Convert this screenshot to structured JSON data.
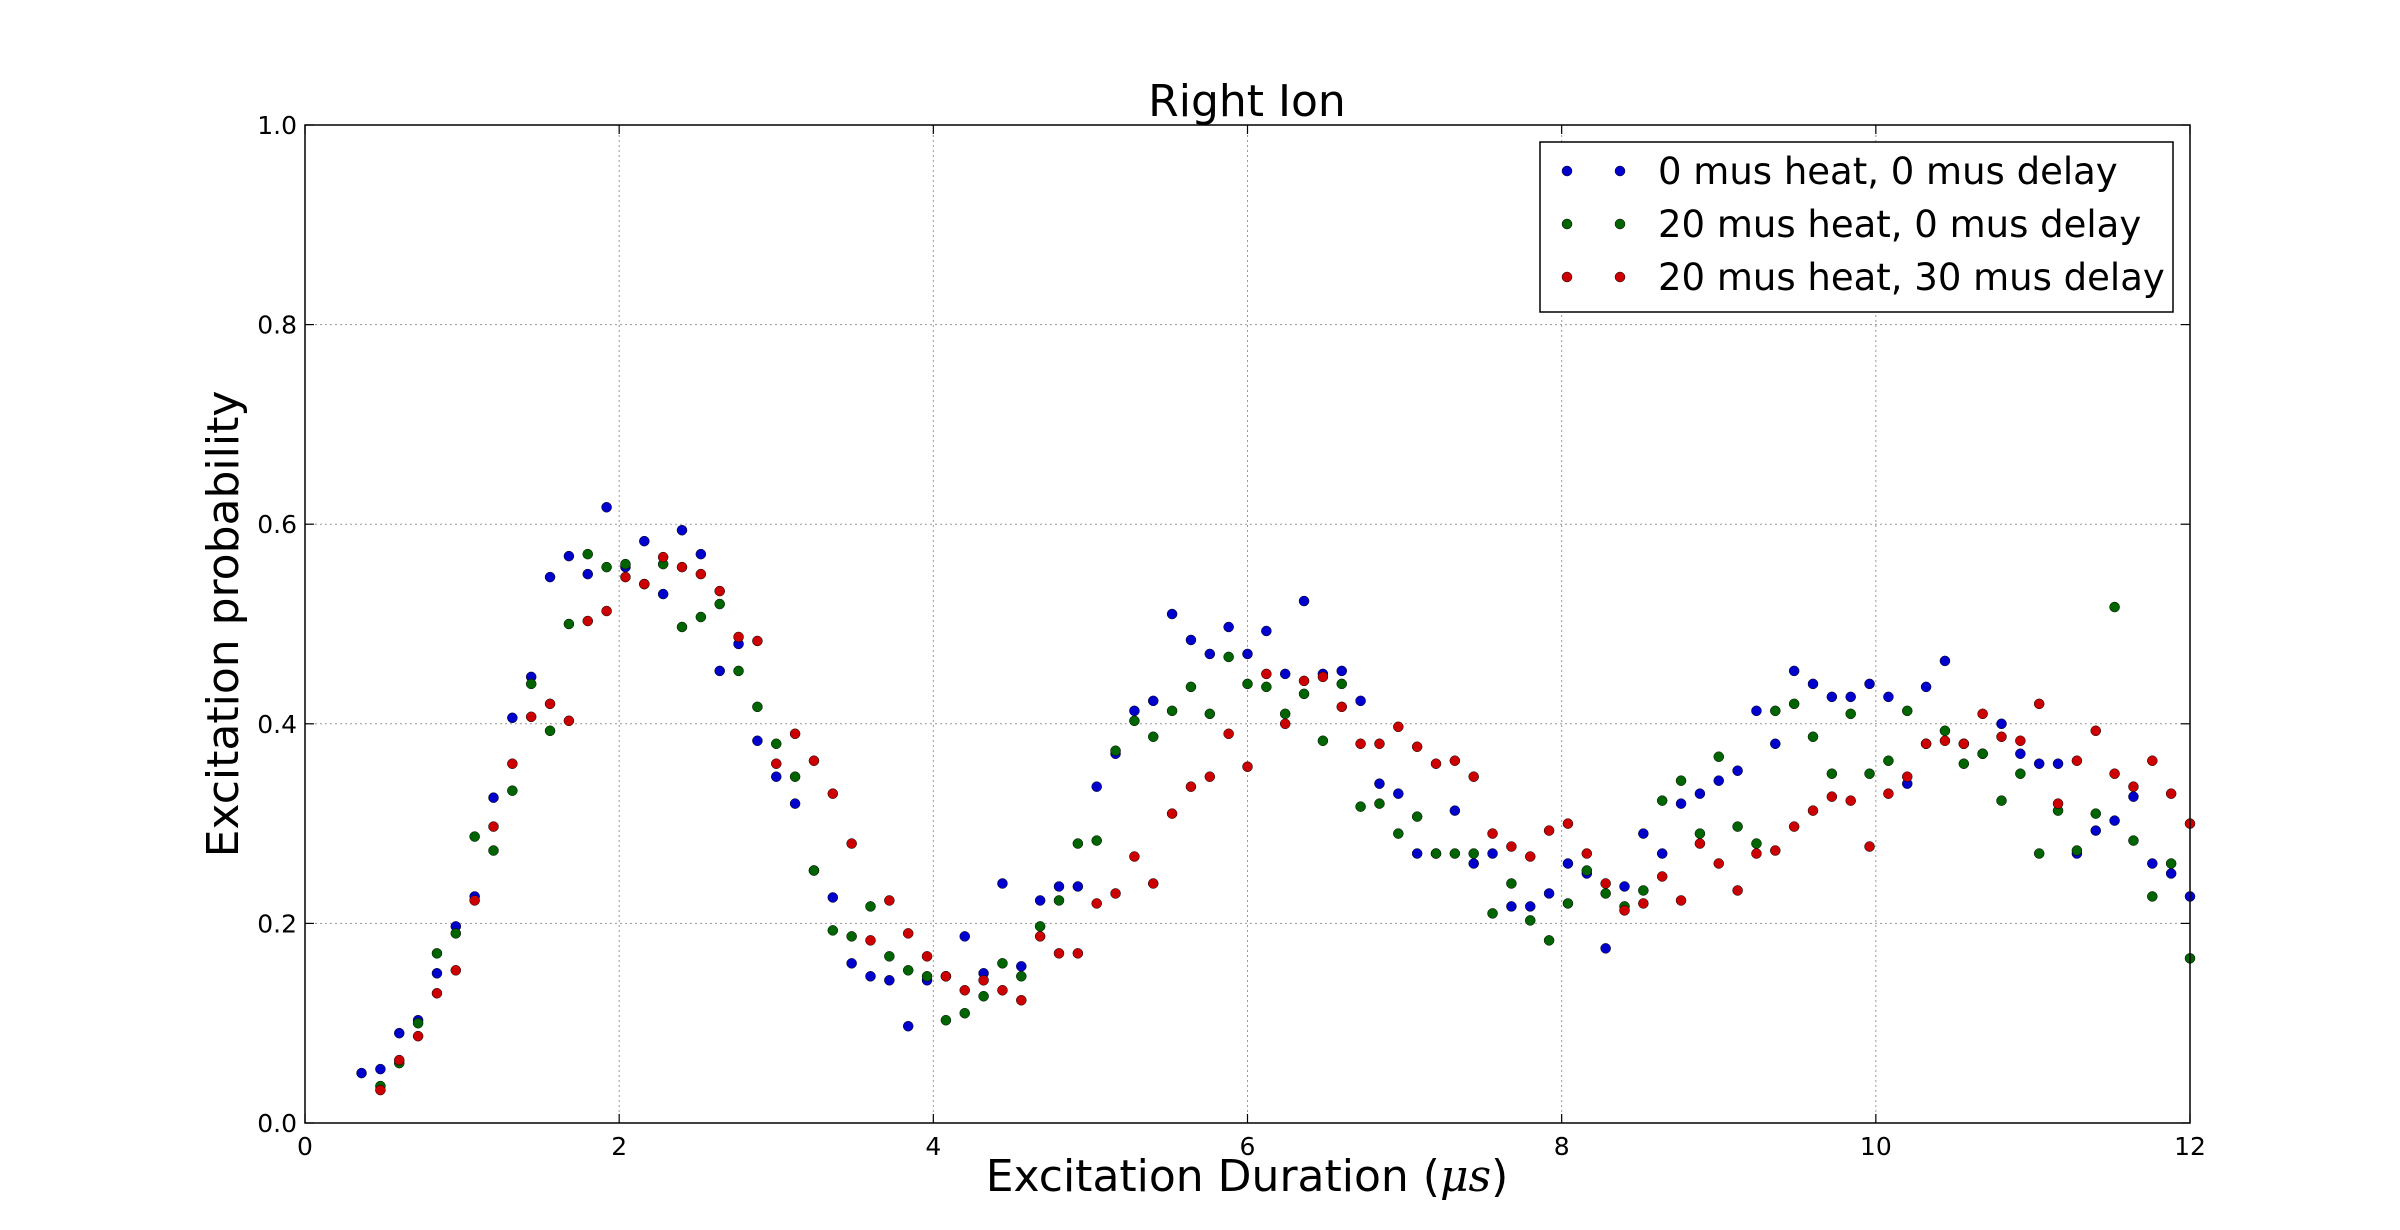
{
  "chart_data": {
    "type": "scatter",
    "title": "Right Ion",
    "xlabel_prefix": "Excitation Duration (",
    "xlabel_unit": "μs",
    "xlabel_suffix": ")",
    "ylabel": "Excitation probability",
    "xlim": [
      0,
      12
    ],
    "ylim": [
      0.0,
      1.0
    ],
    "xticks": [
      "0",
      "2",
      "4",
      "6",
      "8",
      "10",
      "12"
    ],
    "yticks": [
      "0.0",
      "0.2",
      "0.4",
      "0.6",
      "0.8",
      "1.0"
    ],
    "grid": true,
    "legend_position": "top-right",
    "series": [
      {
        "name": "0 mus heat, 0 mus delay",
        "color": "#0000cc",
        "points": [
          [
            0.36,
            0.05
          ],
          [
            0.48,
            0.054
          ],
          [
            0.6,
            0.09
          ],
          [
            0.72,
            0.103
          ],
          [
            0.84,
            0.15
          ],
          [
            0.96,
            0.197
          ],
          [
            1.08,
            0.227
          ],
          [
            1.2,
            0.326
          ],
          [
            1.32,
            0.406
          ],
          [
            1.44,
            0.447
          ],
          [
            1.56,
            0.547
          ],
          [
            1.68,
            0.568
          ],
          [
            1.8,
            0.55
          ],
          [
            1.92,
            0.617
          ],
          [
            2.04,
            0.557
          ],
          [
            2.16,
            0.583
          ],
          [
            2.28,
            0.53
          ],
          [
            2.4,
            0.594
          ],
          [
            2.52,
            0.57
          ],
          [
            2.64,
            0.453
          ],
          [
            2.76,
            0.48
          ],
          [
            2.88,
            0.383
          ],
          [
            3.0,
            0.347
          ],
          [
            3.12,
            0.32
          ],
          [
            3.24,
            0.253
          ],
          [
            3.36,
            0.226
          ],
          [
            3.48,
            0.16
          ],
          [
            3.6,
            0.147
          ],
          [
            3.72,
            0.143
          ],
          [
            3.84,
            0.097
          ],
          [
            3.96,
            0.143
          ],
          [
            4.08,
            0.147
          ],
          [
            4.2,
            0.187
          ],
          [
            4.32,
            0.15
          ],
          [
            4.44,
            0.24
          ],
          [
            4.56,
            0.157
          ],
          [
            4.68,
            0.223
          ],
          [
            4.8,
            0.237
          ],
          [
            4.92,
            0.237
          ],
          [
            5.04,
            0.337
          ],
          [
            5.16,
            0.37
          ],
          [
            5.28,
            0.413
          ],
          [
            5.4,
            0.423
          ],
          [
            5.52,
            0.51
          ],
          [
            5.64,
            0.484
          ],
          [
            5.76,
            0.47
          ],
          [
            5.88,
            0.497
          ],
          [
            6.0,
            0.47
          ],
          [
            6.12,
            0.493
          ],
          [
            6.24,
            0.45
          ],
          [
            6.36,
            0.523
          ],
          [
            6.48,
            0.45
          ],
          [
            6.6,
            0.453
          ],
          [
            6.72,
            0.423
          ],
          [
            6.84,
            0.34
          ],
          [
            6.96,
            0.33
          ],
          [
            7.08,
            0.27
          ],
          [
            7.2,
            0.27
          ],
          [
            7.32,
            0.313
          ],
          [
            7.44,
            0.26
          ],
          [
            7.56,
            0.27
          ],
          [
            7.68,
            0.217
          ],
          [
            7.8,
            0.217
          ],
          [
            7.92,
            0.23
          ],
          [
            8.04,
            0.26
          ],
          [
            8.16,
            0.25
          ],
          [
            8.28,
            0.175
          ],
          [
            8.4,
            0.237
          ],
          [
            8.52,
            0.29
          ],
          [
            8.64,
            0.27
          ],
          [
            8.76,
            0.32
          ],
          [
            8.88,
            0.33
          ],
          [
            9.0,
            0.343
          ],
          [
            9.12,
            0.353
          ],
          [
            9.24,
            0.413
          ],
          [
            9.36,
            0.38
          ],
          [
            9.48,
            0.453
          ],
          [
            9.6,
            0.44
          ],
          [
            9.72,
            0.427
          ],
          [
            9.84,
            0.427
          ],
          [
            9.96,
            0.44
          ],
          [
            10.08,
            0.427
          ],
          [
            10.2,
            0.34
          ],
          [
            10.32,
            0.437
          ],
          [
            10.44,
            0.463
          ],
          [
            10.56,
            0.38
          ],
          [
            10.68,
            0.37
          ],
          [
            10.8,
            0.4
          ],
          [
            10.92,
            0.37
          ],
          [
            11.04,
            0.36
          ],
          [
            11.16,
            0.36
          ],
          [
            11.28,
            0.27
          ],
          [
            11.4,
            0.293
          ],
          [
            11.52,
            0.303
          ],
          [
            11.64,
            0.327
          ],
          [
            11.76,
            0.26
          ],
          [
            11.88,
            0.25
          ],
          [
            12.0,
            0.227
          ]
        ]
      },
      {
        "name": "20 mus heat, 0 mus delay",
        "color": "#006400",
        "points": [
          [
            0.48,
            0.037
          ],
          [
            0.6,
            0.06
          ],
          [
            0.72,
            0.1
          ],
          [
            0.84,
            0.17
          ],
          [
            0.96,
            0.19
          ],
          [
            1.08,
            0.287
          ],
          [
            1.2,
            0.273
          ],
          [
            1.32,
            0.333
          ],
          [
            1.44,
            0.44
          ],
          [
            1.56,
            0.393
          ],
          [
            1.68,
            0.5
          ],
          [
            1.8,
            0.57
          ],
          [
            1.92,
            0.557
          ],
          [
            2.04,
            0.56
          ],
          [
            2.16,
            0.54
          ],
          [
            2.28,
            0.56
          ],
          [
            2.4,
            0.497
          ],
          [
            2.52,
            0.507
          ],
          [
            2.64,
            0.52
          ],
          [
            2.76,
            0.453
          ],
          [
            2.88,
            0.417
          ],
          [
            3.0,
            0.38
          ],
          [
            3.12,
            0.347
          ],
          [
            3.24,
            0.253
          ],
          [
            3.36,
            0.193
          ],
          [
            3.48,
            0.187
          ],
          [
            3.6,
            0.217
          ],
          [
            3.72,
            0.167
          ],
          [
            3.84,
            0.153
          ],
          [
            3.96,
            0.147
          ],
          [
            4.08,
            0.103
          ],
          [
            4.2,
            0.11
          ],
          [
            4.32,
            0.127
          ],
          [
            4.44,
            0.16
          ],
          [
            4.56,
            0.147
          ],
          [
            4.68,
            0.197
          ],
          [
            4.8,
            0.223
          ],
          [
            4.92,
            0.28
          ],
          [
            5.04,
            0.283
          ],
          [
            5.16,
            0.373
          ],
          [
            5.28,
            0.403
          ],
          [
            5.4,
            0.387
          ],
          [
            5.52,
            0.413
          ],
          [
            5.64,
            0.437
          ],
          [
            5.76,
            0.41
          ],
          [
            5.88,
            0.467
          ],
          [
            6.0,
            0.44
          ],
          [
            6.12,
            0.437
          ],
          [
            6.24,
            0.41
          ],
          [
            6.36,
            0.43
          ],
          [
            6.48,
            0.383
          ],
          [
            6.6,
            0.44
          ],
          [
            6.72,
            0.317
          ],
          [
            6.84,
            0.32
          ],
          [
            6.96,
            0.29
          ],
          [
            7.08,
            0.307
          ],
          [
            7.2,
            0.27
          ],
          [
            7.32,
            0.27
          ],
          [
            7.44,
            0.27
          ],
          [
            7.56,
            0.21
          ],
          [
            7.68,
            0.24
          ],
          [
            7.8,
            0.203
          ],
          [
            7.92,
            0.183
          ],
          [
            8.04,
            0.22
          ],
          [
            8.16,
            0.253
          ],
          [
            8.28,
            0.23
          ],
          [
            8.4,
            0.217
          ],
          [
            8.52,
            0.233
          ],
          [
            8.64,
            0.323
          ],
          [
            8.76,
            0.343
          ],
          [
            8.88,
            0.29
          ],
          [
            9.0,
            0.367
          ],
          [
            9.12,
            0.297
          ],
          [
            9.24,
            0.28
          ],
          [
            9.36,
            0.413
          ],
          [
            9.48,
            0.42
          ],
          [
            9.6,
            0.387
          ],
          [
            9.72,
            0.35
          ],
          [
            9.84,
            0.41
          ],
          [
            9.96,
            0.35
          ],
          [
            10.08,
            0.363
          ],
          [
            10.2,
            0.413
          ],
          [
            10.32,
            0.38
          ],
          [
            10.44,
            0.393
          ],
          [
            10.56,
            0.36
          ],
          [
            10.68,
            0.37
          ],
          [
            10.8,
            0.323
          ],
          [
            10.92,
            0.35
          ],
          [
            11.04,
            0.27
          ],
          [
            11.16,
            0.313
          ],
          [
            11.28,
            0.273
          ],
          [
            11.4,
            0.31
          ],
          [
            11.52,
            0.517
          ],
          [
            11.64,
            0.283
          ],
          [
            11.76,
            0.227
          ],
          [
            11.88,
            0.26
          ],
          [
            12.0,
            0.165
          ]
        ]
      },
      {
        "name": "20 mus heat, 30 mus delay",
        "color": "#cc0000",
        "points": [
          [
            0.48,
            0.033
          ],
          [
            0.6,
            0.063
          ],
          [
            0.72,
            0.087
          ],
          [
            0.84,
            0.13
          ],
          [
            0.96,
            0.153
          ],
          [
            1.08,
            0.223
          ],
          [
            1.2,
            0.297
          ],
          [
            1.32,
            0.36
          ],
          [
            1.44,
            0.407
          ],
          [
            1.56,
            0.42
          ],
          [
            1.68,
            0.403
          ],
          [
            1.8,
            0.503
          ],
          [
            1.92,
            0.513
          ],
          [
            2.04,
            0.547
          ],
          [
            2.16,
            0.54
          ],
          [
            2.28,
            0.567
          ],
          [
            2.4,
            0.557
          ],
          [
            2.52,
            0.55
          ],
          [
            2.64,
            0.533
          ],
          [
            2.76,
            0.487
          ],
          [
            2.88,
            0.483
          ],
          [
            3.0,
            0.36
          ],
          [
            3.12,
            0.39
          ],
          [
            3.24,
            0.363
          ],
          [
            3.36,
            0.33
          ],
          [
            3.48,
            0.28
          ],
          [
            3.6,
            0.183
          ],
          [
            3.72,
            0.223
          ],
          [
            3.84,
            0.19
          ],
          [
            3.96,
            0.167
          ],
          [
            4.08,
            0.147
          ],
          [
            4.2,
            0.133
          ],
          [
            4.32,
            0.143
          ],
          [
            4.44,
            0.133
          ],
          [
            4.56,
            0.123
          ],
          [
            4.68,
            0.187
          ],
          [
            4.8,
            0.17
          ],
          [
            4.92,
            0.17
          ],
          [
            5.04,
            0.22
          ],
          [
            5.16,
            0.23
          ],
          [
            5.28,
            0.267
          ],
          [
            5.4,
            0.24
          ],
          [
            5.52,
            0.31
          ],
          [
            5.64,
            0.337
          ],
          [
            5.76,
            0.347
          ],
          [
            5.88,
            0.39
          ],
          [
            6.0,
            0.357
          ],
          [
            6.12,
            0.45
          ],
          [
            6.24,
            0.4
          ],
          [
            6.36,
            0.443
          ],
          [
            6.48,
            0.447
          ],
          [
            6.6,
            0.417
          ],
          [
            6.72,
            0.38
          ],
          [
            6.84,
            0.38
          ],
          [
            6.96,
            0.397
          ],
          [
            7.08,
            0.377
          ],
          [
            7.2,
            0.36
          ],
          [
            7.32,
            0.363
          ],
          [
            7.44,
            0.347
          ],
          [
            7.56,
            0.29
          ],
          [
            7.68,
            0.277
          ],
          [
            7.8,
            0.267
          ],
          [
            7.92,
            0.293
          ],
          [
            8.04,
            0.3
          ],
          [
            8.16,
            0.27
          ],
          [
            8.28,
            0.24
          ],
          [
            8.4,
            0.213
          ],
          [
            8.52,
            0.22
          ],
          [
            8.64,
            0.247
          ],
          [
            8.76,
            0.223
          ],
          [
            8.88,
            0.28
          ],
          [
            9.0,
            0.26
          ],
          [
            9.12,
            0.233
          ],
          [
            9.24,
            0.27
          ],
          [
            9.36,
            0.273
          ],
          [
            9.48,
            0.297
          ],
          [
            9.6,
            0.313
          ],
          [
            9.72,
            0.327
          ],
          [
            9.84,
            0.323
          ],
          [
            9.96,
            0.277
          ],
          [
            10.08,
            0.33
          ],
          [
            10.2,
            0.347
          ],
          [
            10.32,
            0.38
          ],
          [
            10.44,
            0.383
          ],
          [
            10.56,
            0.38
          ],
          [
            10.68,
            0.41
          ],
          [
            10.8,
            0.387
          ],
          [
            10.92,
            0.383
          ],
          [
            11.04,
            0.42
          ],
          [
            11.16,
            0.32
          ],
          [
            11.28,
            0.363
          ],
          [
            11.4,
            0.393
          ],
          [
            11.52,
            0.35
          ],
          [
            11.64,
            0.337
          ],
          [
            11.76,
            0.363
          ],
          [
            11.88,
            0.33
          ],
          [
            12.0,
            0.3
          ]
        ]
      }
    ]
  }
}
